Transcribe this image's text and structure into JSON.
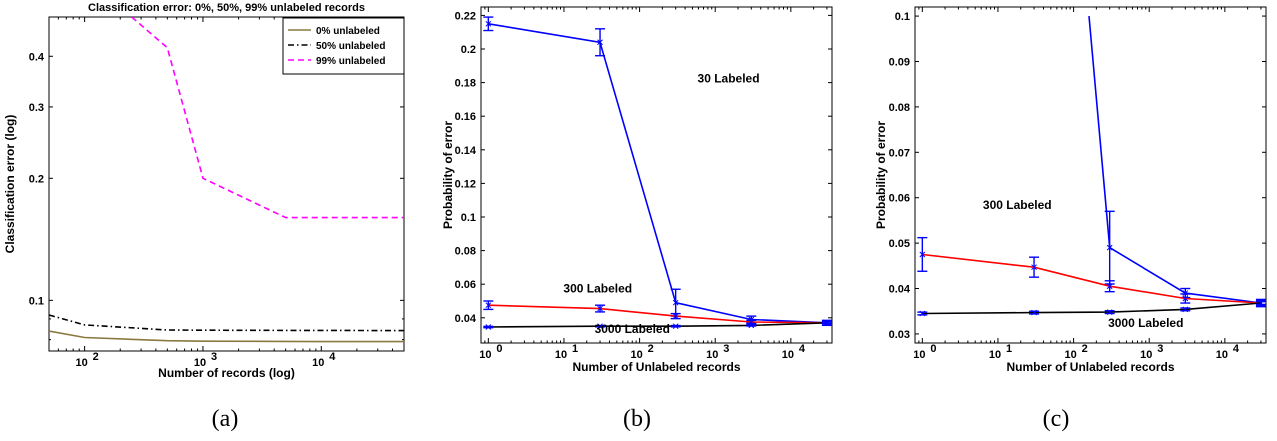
{
  "captions": [
    "(a)",
    "(b)",
    "(c)"
  ],
  "chart_data": [
    {
      "type": "line",
      "title": "Classification error: 0%, 50%, 99% unlabeled records",
      "xlabel": "Number of records (log)",
      "ylabel": "Classification error (log)",
      "xscale": "log",
      "yscale": "log",
      "xlim": [
        50,
        50000
      ],
      "ylim": [
        0.075,
        0.5
      ],
      "x_ticks": [
        100,
        1000,
        10000
      ],
      "x_tick_labels": [
        "10",
        "10",
        "10"
      ],
      "x_tick_exponents": [
        "2",
        "3",
        "4"
      ],
      "y_ticks": [
        0.1,
        0.2,
        0.3,
        0.4
      ],
      "y_tick_labels": [
        "0.1",
        "0.2",
        "0.3",
        "0.4"
      ],
      "grid": false,
      "legend": "top-right",
      "series": [
        {
          "name": "0% unlabeled",
          "color": "#8b7840",
          "style": "solid",
          "x": [
            50,
            100,
            500,
            1000,
            5000,
            10000,
            50000
          ],
          "y": [
            0.084,
            0.081,
            0.0795,
            0.0793,
            0.0792,
            0.0791,
            0.0791
          ]
        },
        {
          "name": "50% unlabeled",
          "color": "#000000",
          "style": "dashdot",
          "x": [
            50,
            100,
            500,
            1000,
            5000,
            10000,
            50000
          ],
          "y": [
            0.092,
            0.087,
            0.0845,
            0.0844,
            0.0843,
            0.0843,
            0.0842
          ]
        },
        {
          "name": "99% unlabeled",
          "color": "#ff00ff",
          "style": "dashed",
          "x": [
            250,
            500,
            1000,
            5000,
            10000,
            50000
          ],
          "y": [
            0.5,
            0.42,
            0.2,
            0.16,
            0.16,
            0.16
          ]
        }
      ]
    },
    {
      "type": "line",
      "title": "",
      "xlabel": "Number of Unlabeled records",
      "ylabel": "Probability of error",
      "xscale": "log",
      "xlim": [
        0.8,
        35000
      ],
      "ylim": [
        0.025,
        0.225
      ],
      "x_ticks": [
        1,
        10,
        100,
        1000,
        10000
      ],
      "x_tick_labels": [
        "10",
        "10",
        "10",
        "10",
        "10"
      ],
      "x_tick_exponents": [
        "0",
        "1",
        "2",
        "3",
        "4"
      ],
      "y_ticks": [
        0.04,
        0.06,
        0.08,
        0.1,
        0.12,
        0.14,
        0.16,
        0.18,
        0.2,
        0.22
      ],
      "y_tick_labels": [
        "0.04",
        "0.06",
        "0.08",
        "0.1",
        "0.12",
        "0.14",
        "0.16",
        "0.18",
        "0.2",
        "0.22"
      ],
      "grid": false,
      "annotations": [
        {
          "text": "30 Labeled",
          "x": 1500,
          "y": 0.18
        },
        {
          "text": "300 Labeled",
          "x": 28,
          "y": 0.055
        },
        {
          "text": "3000 Labeled",
          "x": 80,
          "y": 0.031
        }
      ],
      "series": [
        {
          "name": "30 Labeled",
          "color": "#0000ff",
          "x": [
            1,
            30,
            300,
            3000,
            30000
          ],
          "y": [
            0.215,
            0.204,
            0.049,
            0.039,
            0.037
          ],
          "err": [
            0.004,
            0.008,
            0.008,
            0.002,
            0.0015
          ]
        },
        {
          "name": "300 Labeled",
          "color": "#ff0000",
          "x": [
            1,
            30,
            300,
            3000,
            30000
          ],
          "y": [
            0.0475,
            0.0455,
            0.041,
            0.0375,
            0.037
          ],
          "err": [
            0.0025,
            0.002,
            0.0015,
            0.001,
            0.0008
          ]
        },
        {
          "name": "3000 Labeled",
          "color": "#000000",
          "x": [
            1,
            30,
            300,
            3000,
            30000
          ],
          "y": [
            0.0345,
            0.035,
            0.035,
            0.0355,
            0.037
          ],
          "err": [
            0.0004,
            0.0004,
            0.0004,
            0.0004,
            0.0004
          ]
        }
      ]
    },
    {
      "type": "line",
      "title": "",
      "xlabel": "Number of Unlabeled records",
      "ylabel": "Probability of error",
      "xscale": "log",
      "xlim": [
        0.8,
        35000
      ],
      "ylim": [
        0.028,
        0.102
      ],
      "x_ticks": [
        1,
        10,
        100,
        1000,
        10000
      ],
      "x_tick_labels": [
        "10",
        "10",
        "10",
        "10",
        "10"
      ],
      "x_tick_exponents": [
        "0",
        "1",
        "2",
        "3",
        "4"
      ],
      "y_ticks": [
        0.03,
        0.04,
        0.05,
        0.06,
        0.07,
        0.08,
        0.09,
        0.1
      ],
      "y_tick_labels": [
        "0.03",
        "0.04",
        "0.05",
        "0.06",
        "0.07",
        "0.08",
        "0.09",
        "0.1"
      ],
      "grid": false,
      "annotations": [
        {
          "text": "300 Labeled",
          "x": 18,
          "y": 0.0575
        },
        {
          "text": "3000 Labeled",
          "x": 900,
          "y": 0.0315
        }
      ],
      "series": [
        {
          "name": "30 Labeled",
          "color": "#0000ff",
          "x": [
            160,
            300,
            3000,
            30000
          ],
          "y": [
            0.1,
            0.049,
            0.039,
            0.0368
          ],
          "err": [
            0,
            0.008,
            0.001,
            0.0008
          ]
        },
        {
          "name": "300 Labeled",
          "color": "#ff0000",
          "x": [
            1,
            30,
            300,
            3000,
            30000
          ],
          "y": [
            0.0475,
            0.0447,
            0.0405,
            0.0378,
            0.0368
          ],
          "err": [
            0.0037,
            0.0022,
            0.0012,
            0.001,
            0.0006
          ]
        },
        {
          "name": "3000 Labeled",
          "color": "#000000",
          "x": [
            1,
            30,
            300,
            3000,
            30000
          ],
          "y": [
            0.0345,
            0.0347,
            0.0348,
            0.0354,
            0.0368
          ],
          "err": [
            0.0003,
            0.0003,
            0.0003,
            0.0003,
            0.0003
          ]
        }
      ]
    }
  ]
}
